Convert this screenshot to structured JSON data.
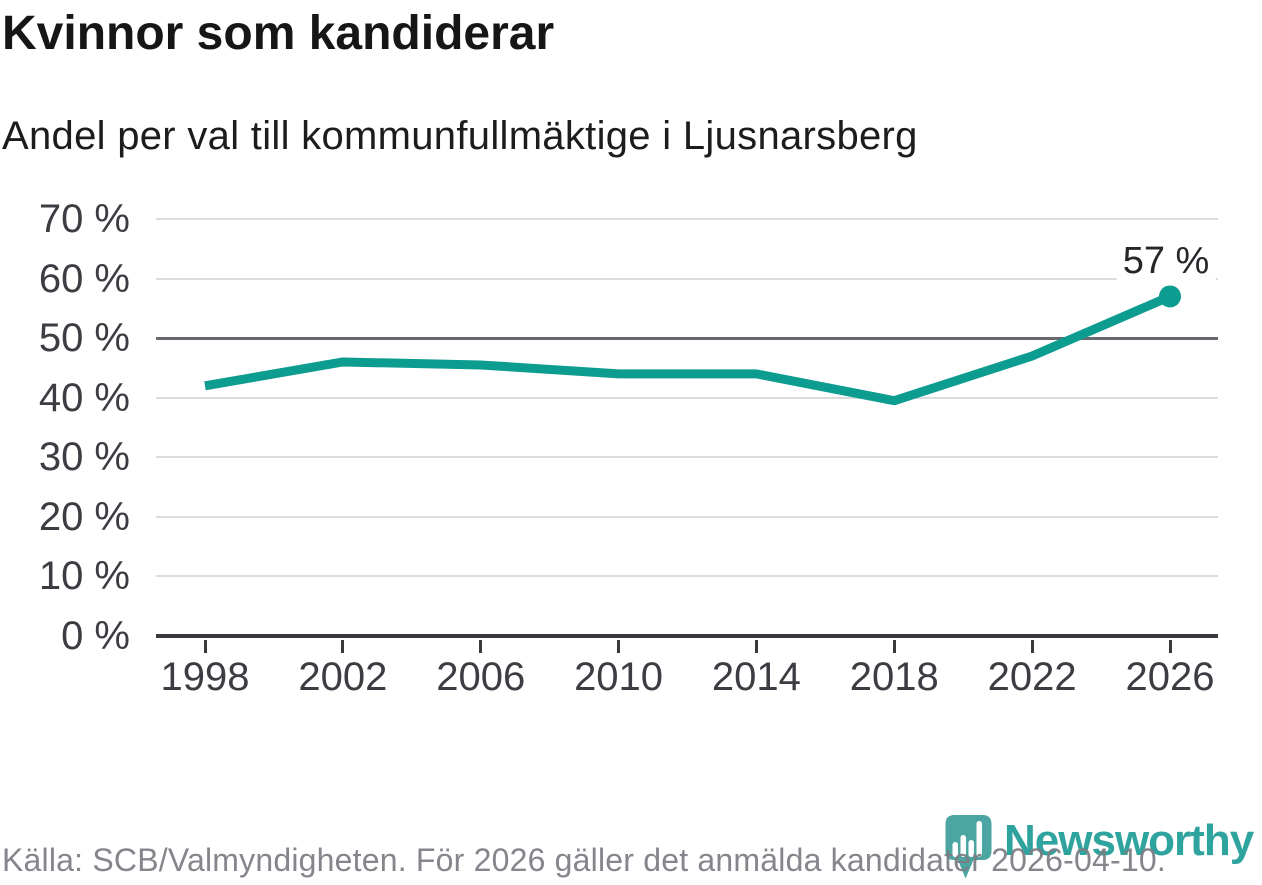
{
  "title": "Kvinnor som kandiderar",
  "subtitle": "Andel per val till kommunfullmäktige i Ljusnarsberg",
  "footer": {
    "source_text": "Källa: SCB/Valmyndigheten. För 2026 gäller det anmälda kandidater 2026-04-10."
  },
  "branding": {
    "wordmark": "Newsworthy",
    "logo_icon": "newsworthy-speech-bubble-bar-chart-icon",
    "brand_color": "#2fa49e",
    "logo_bubble_color": "#4ba5a0"
  },
  "chart_data": {
    "type": "line",
    "title": "Kvinnor som kandiderar",
    "subtitle": "Andel per val till kommunfullmäktige i Ljusnarsberg",
    "x": [
      1998,
      2002,
      2006,
      2010,
      2014,
      2018,
      2022,
      2026
    ],
    "xtick_labels": [
      "1998",
      "2002",
      "2006",
      "2010",
      "2014",
      "2018",
      "2022",
      "2026"
    ],
    "values": [
      42,
      46,
      45.5,
      44,
      44,
      39.5,
      47,
      57
    ],
    "unit": "%",
    "ylim": [
      0,
      70
    ],
    "ytick_step": 10,
    "ytick_labels": [
      "0 %",
      "10 %",
      "20 %",
      "30 %",
      "40 %",
      "50 %",
      "60 %",
      "70 %"
    ],
    "grid": true,
    "emphasized_gridline_value": 50,
    "line_color": "#0d9c90",
    "end_point_label": "57 %",
    "legend_position": "none"
  }
}
